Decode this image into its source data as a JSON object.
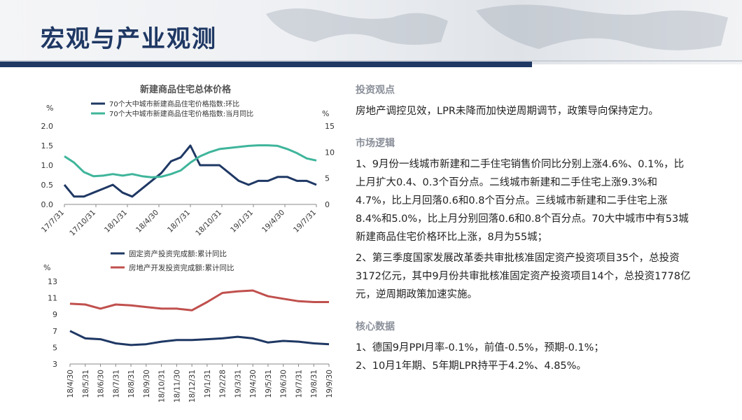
{
  "header": {
    "title": "宏观与产业观测"
  },
  "colors": {
    "navy": "#1f3864",
    "teal": "#3fb59b",
    "red": "#c0504d",
    "grey": "#8a8f99"
  },
  "chart_data": [
    {
      "type": "line",
      "title": "新建商品住宅总体价格",
      "left_unit": "%",
      "right_unit": "%",
      "ylim": [
        0,
        2
      ],
      "y2lim": [
        0,
        15
      ],
      "yticks": [
        "2.0",
        "1.5",
        "1.0",
        "0.5",
        "0.0"
      ],
      "y2ticks": [
        "15",
        "10",
        "5",
        "0"
      ],
      "xticks": [
        "17/7/31",
        "17/10/31",
        "18/1/31",
        "18/4/30",
        "18/7/31",
        "18/10/31",
        "19/1/31",
        "19/4/30",
        "19/7/31"
      ],
      "legend_position": "top",
      "series": [
        {
          "name": "70个大中城市新建商品住宅价格指数:环比",
          "axis": "left",
          "color": "#1f3864",
          "values": [
            0.5,
            0.2,
            0.2,
            0.3,
            0.4,
            0.5,
            0.3,
            0.2,
            0.4,
            0.6,
            0.8,
            1.1,
            1.2,
            1.5,
            1.0,
            1.0,
            1.0,
            0.8,
            0.6,
            0.5,
            0.6,
            0.6,
            0.7,
            0.7,
            0.6,
            0.6,
            0.5
          ]
        },
        {
          "name": "70个大中城市新建商品住宅价格指数:当月同比",
          "axis": "right",
          "color": "#3fb59b",
          "values": [
            9.2,
            8.0,
            6.2,
            5.4,
            5.5,
            5.8,
            5.5,
            5.8,
            5.4,
            5.2,
            5.3,
            5.8,
            6.5,
            8.0,
            9.2,
            10.0,
            10.6,
            10.8,
            11.0,
            11.2,
            11.3,
            11.3,
            11.2,
            10.6,
            9.8,
            8.8,
            8.4
          ]
        }
      ]
    },
    {
      "type": "line",
      "left_unit": "%",
      "ylim": [
        3,
        13
      ],
      "yticks": [
        "13",
        "11",
        "9",
        "7",
        "5",
        "3"
      ],
      "xticks": [
        "18/4/30",
        "18/5/31",
        "18/6/30",
        "18/7/31",
        "18/8/31",
        "18/9/30",
        "18/10/31",
        "18/11/30",
        "18/12/31",
        "19/1/31",
        "19/2/28",
        "19/3/31",
        "19/4/30",
        "19/5/31",
        "19/6/30",
        "19/7/31",
        "19/8/31",
        "19/9/30"
      ],
      "legend_position": "top",
      "series": [
        {
          "name": "固定资产投资完成额:累计同比",
          "color": "#1f3864",
          "values": [
            7.0,
            6.1,
            6.0,
            5.5,
            5.3,
            5.4,
            5.7,
            5.9,
            5.9,
            6.0,
            6.1,
            6.3,
            6.1,
            5.6,
            5.8,
            5.7,
            5.5,
            5.4
          ]
        },
        {
          "name": "房地产开发投资完成额:累计同比",
          "color": "#c0504d",
          "values": [
            10.3,
            10.2,
            9.7,
            10.2,
            10.1,
            9.9,
            9.7,
            9.7,
            9.5,
            10.5,
            11.6,
            11.8,
            11.9,
            11.2,
            10.9,
            10.6,
            10.5,
            10.5
          ]
        }
      ]
    }
  ],
  "right": {
    "sections": [
      {
        "heading": "投资观点",
        "paras": [
          "房地产调控见效，LPR未降而加快逆周期调节，政策导向保持定力。"
        ]
      },
      {
        "heading": "市场逻辑",
        "paras": [
          "1、9月份一线城市新建和二手住宅销售价同比分别上涨4.6%、0.1%，比上月扩大0.4、0.3个百分点。二线城市新建和二手住宅上涨9.3%和4.7%，比上月回落0.6和0.8个百分点。三线城市新建和二手住宅上涨8.4%和5.0%，比上月分别回落0.6和0.8个百分点。70大中城市中有53城新建商品住宅价格环比上涨，8月为55城；",
          "2、第三季度国家发展改革委共审批核准固定资产投资项目35个，总投资3172亿元，其中9月份共审批核准固定资产投资项目14个，总投资1778亿元，逆周期政策加速实施。"
        ]
      },
      {
        "heading": "核心数据",
        "paras": [
          "1、德国9月PPI月率-0.1%，前值-0.5%，预期-0.1%；",
          "2、10月1年期、5年期LPR持平于4.2%、4.85%。"
        ]
      }
    ]
  }
}
